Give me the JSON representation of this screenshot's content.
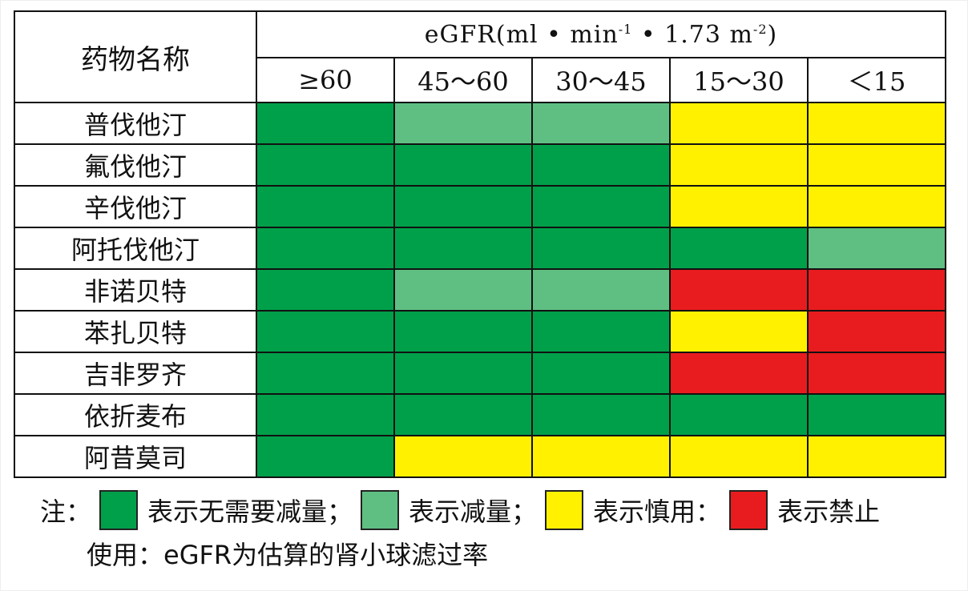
{
  "colors": {
    "no_reduction": "#00A04A",
    "reduce": "#5FBF82",
    "caution": "#FFF100",
    "forbidden": "#E81C1E"
  },
  "table": {
    "name_header": "药物名称",
    "unit_header": "eGFR(ml • min",
    "unit_sup1": "-1",
    "unit_mid": " • 1.73 m",
    "unit_sup2": "-2",
    "unit_close": ")",
    "ranges": [
      "≥60",
      "45～60",
      "30～45",
      "15～30",
      "＜15"
    ],
    "rows": [
      {
        "name": "普伐他汀",
        "cells": [
          "no_reduction",
          "reduce",
          "reduce",
          "caution",
          "caution"
        ]
      },
      {
        "name": "氟伐他汀",
        "cells": [
          "no_reduction",
          "no_reduction",
          "no_reduction",
          "caution",
          "caution"
        ]
      },
      {
        "name": "辛伐他汀",
        "cells": [
          "no_reduction",
          "no_reduction",
          "no_reduction",
          "caution",
          "caution"
        ]
      },
      {
        "name": "阿托伐他汀",
        "cells": [
          "no_reduction",
          "no_reduction",
          "no_reduction",
          "no_reduction",
          "reduce"
        ]
      },
      {
        "name": "非诺贝特",
        "cells": [
          "no_reduction",
          "reduce",
          "reduce",
          "forbidden",
          "forbidden"
        ]
      },
      {
        "name": "苯扎贝特",
        "cells": [
          "no_reduction",
          "no_reduction",
          "no_reduction",
          "caution",
          "forbidden"
        ]
      },
      {
        "name": "吉非罗齐",
        "cells": [
          "no_reduction",
          "no_reduction",
          "no_reduction",
          "forbidden",
          "forbidden"
        ]
      },
      {
        "name": "依折麦布",
        "cells": [
          "no_reduction",
          "no_reduction",
          "no_reduction",
          "no_reduction",
          "no_reduction"
        ]
      },
      {
        "name": "阿昔莫司",
        "cells": [
          "no_reduction",
          "caution",
          "caution",
          "caution",
          "caution"
        ]
      }
    ]
  },
  "legend": {
    "prefix": "注：",
    "items": [
      {
        "key": "no_reduction",
        "label": "表示无需要减量；"
      },
      {
        "key": "reduce",
        "label": "表示减量；"
      },
      {
        "key": "caution",
        "label": "表示慎用："
      },
      {
        "key": "forbidden",
        "label": "表示禁止"
      }
    ],
    "note": "使用：eGFR为估算的肾小球滤过率"
  },
  "chart_data": {
    "type": "heatmap",
    "title": "",
    "xlabel": "eGFR(ml • min-1 • 1.73 m-2)",
    "ylabel": "药物名称",
    "x": [
      "≥60",
      "45～60",
      "30～45",
      "15～30",
      "＜15"
    ],
    "y": [
      "普伐他汀",
      "氟伐他汀",
      "辛伐他汀",
      "阿托伐他汀",
      "非诺贝特",
      "苯扎贝特",
      "吉非罗齐",
      "依折麦布",
      "阿昔莫司"
    ],
    "categories_legend": {
      "no_reduction": "表示无需要减量",
      "reduce": "表示减量",
      "caution": "表示慎用",
      "forbidden": "表示禁止"
    },
    "values": [
      [
        "no_reduction",
        "reduce",
        "reduce",
        "caution",
        "caution"
      ],
      [
        "no_reduction",
        "no_reduction",
        "no_reduction",
        "caution",
        "caution"
      ],
      [
        "no_reduction",
        "no_reduction",
        "no_reduction",
        "caution",
        "caution"
      ],
      [
        "no_reduction",
        "no_reduction",
        "no_reduction",
        "no_reduction",
        "reduce"
      ],
      [
        "no_reduction",
        "reduce",
        "reduce",
        "forbidden",
        "forbidden"
      ],
      [
        "no_reduction",
        "no_reduction",
        "no_reduction",
        "caution",
        "forbidden"
      ],
      [
        "no_reduction",
        "no_reduction",
        "no_reduction",
        "forbidden",
        "forbidden"
      ],
      [
        "no_reduction",
        "no_reduction",
        "no_reduction",
        "no_reduction",
        "no_reduction"
      ],
      [
        "no_reduction",
        "caution",
        "caution",
        "caution",
        "caution"
      ]
    ],
    "note": "eGFR为估算的肾小球滤过率"
  }
}
